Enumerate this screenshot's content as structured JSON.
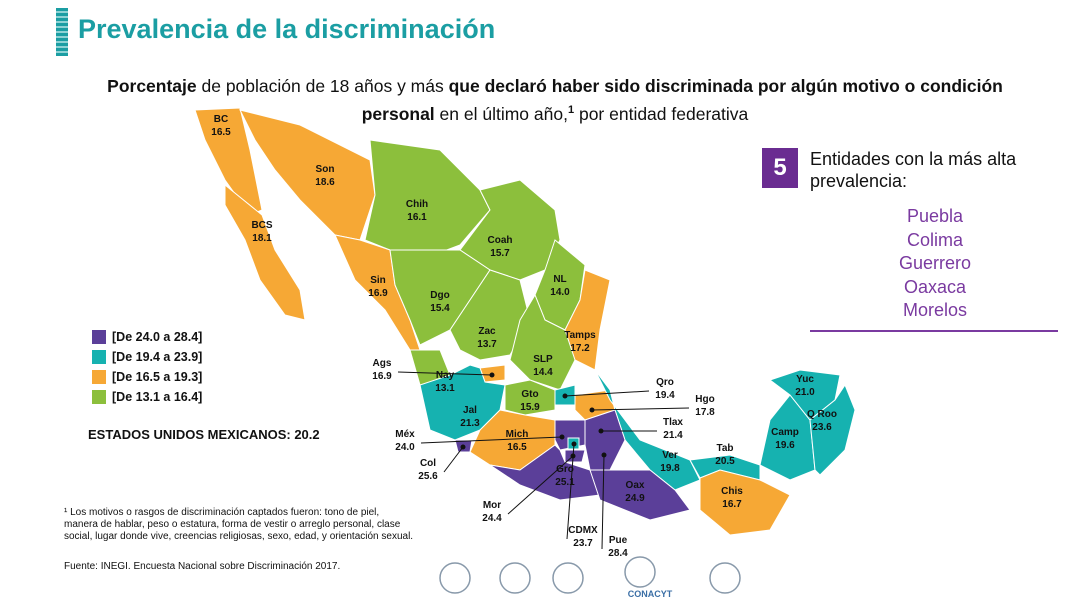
{
  "header": {
    "title": "Prevalencia de la discriminación"
  },
  "subtitle": [
    {
      "text": "Porcentaje",
      "bold": true
    },
    {
      "text": " de población de 18 años y más ",
      "bold": false
    },
    {
      "text": "que declaró haber sido discriminada por algún motivo o condición personal",
      "bold": true
    },
    {
      "text": " en el último año,",
      "bold": false
    },
    {
      "text": "1",
      "bold": true,
      "sup": true
    },
    {
      "text": " por entidad federativa",
      "bold": false
    }
  ],
  "legend": [
    {
      "label": "[De 24.0 a 28.4]",
      "color": "#5b3f99"
    },
    {
      "label": "[De 19.4 a 23.9]",
      "color": "#16b2b0"
    },
    {
      "label": "[De 16.5 a 19.3]",
      "color": "#f6a835"
    },
    {
      "label": "[De 13.1 a 16.4]",
      "color": "#8cbf3c"
    }
  ],
  "national": "ESTADOS UNIDOS MEXICANOS: 20.2",
  "top": {
    "number": "5",
    "text": "Entidades con la más alta prevalencia:",
    "items": [
      "Puebla",
      "Colima",
      "Guerrero",
      "Oaxaca",
      "Morelos"
    ]
  },
  "states": [
    {
      "name": "BC",
      "value": 16.5,
      "color": "#f6a835"
    },
    {
      "name": "Son",
      "value": 18.6,
      "color": "#f6a835"
    },
    {
      "name": "BCS",
      "value": 18.1,
      "color": "#f6a835"
    },
    {
      "name": "Chih",
      "value": 16.1,
      "color": "#8cbf3c"
    },
    {
      "name": "Coah",
      "value": 15.7,
      "color": "#8cbf3c"
    },
    {
      "name": "NL",
      "value": 14,
      "value_label": "14.0",
      "color": "#8cbf3c"
    },
    {
      "name": "Sin",
      "value": 16.9,
      "color": "#f6a835"
    },
    {
      "name": "Dgo",
      "value": 15.4,
      "color": "#8cbf3c"
    },
    {
      "name": "Tamps",
      "value": 17.2,
      "color": "#f6a835"
    },
    {
      "name": "Zac",
      "value": 13.7,
      "color": "#8cbf3c"
    },
    {
      "name": "SLP",
      "value": 14.4,
      "color": "#8cbf3c"
    },
    {
      "name": "Nay",
      "value": 13.1,
      "color": "#8cbf3c"
    },
    {
      "name": "Ags",
      "value": 16.9,
      "color": "#f6a835"
    },
    {
      "name": "Jal",
      "value": 21.3,
      "color": "#16b2b0"
    },
    {
      "name": "Gto",
      "value": 15.9,
      "color": "#8cbf3c"
    },
    {
      "name": "Qro",
      "value": 19.4,
      "color": "#16b2b0"
    },
    {
      "name": "Hgo",
      "value": 17.8,
      "color": "#f6a835"
    },
    {
      "name": "Tlax",
      "value": 21.4,
      "color": "#16b2b0"
    },
    {
      "name": "Mich",
      "value": 16.5,
      "color": "#f6a835"
    },
    {
      "name": "Méx",
      "value": 24,
      "value_label": "24.0",
      "color": "#5b3f99"
    },
    {
      "name": "Ver",
      "value": 19.8,
      "color": "#16b2b0"
    },
    {
      "name": "Tab",
      "value": 20.5,
      "color": "#16b2b0"
    },
    {
      "name": "Camp",
      "value": 19.6,
      "color": "#16b2b0"
    },
    {
      "name": "Yuc",
      "value": 21,
      "value_label": "21.0",
      "color": "#16b2b0"
    },
    {
      "name": "Q Roo",
      "value": 23.6,
      "color": "#16b2b0"
    },
    {
      "name": "Col",
      "value": 25.6,
      "color": "#5b3f99"
    },
    {
      "name": "Gro",
      "value": 25.1,
      "color": "#5b3f99"
    },
    {
      "name": "Oax",
      "value": 24.9,
      "color": "#5b3f99"
    },
    {
      "name": "Chis",
      "value": 16.7,
      "color": "#f6a835"
    },
    {
      "name": "Mor",
      "value": 24.4,
      "color": "#5b3f99"
    },
    {
      "name": "CDMX",
      "value": 23.7,
      "color": "#16b2b0"
    },
    {
      "name": "Pue",
      "value": 28.4,
      "color": "#5b3f99"
    }
  ],
  "footnote": "¹ Los motivos o rasgos de discriminación captados fueron: tono de piel, manera de hablar, peso o estatura, forma de vestir o arreglo personal, clase social, lugar donde vive, creencias religiosas, sexo, edad, y orientación sexual.",
  "source": "Fuente: INEGI. Encuesta Nacional sobre Discriminación 2017.",
  "logo_text": "CONACYT"
}
